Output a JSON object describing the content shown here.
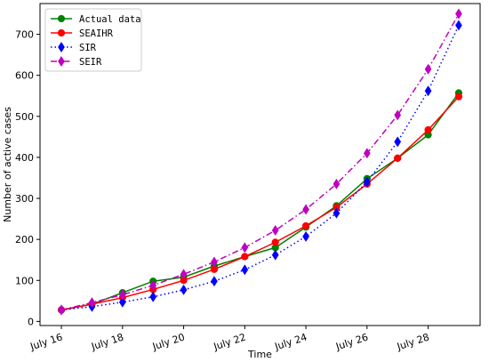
{
  "chart_data": {
    "type": "line",
    "xlabel": "Time",
    "ylabel": "Number of active cases",
    "xlim": [
      15.3,
      29.7
    ],
    "ylim": [
      -10,
      775
    ],
    "x_ticks": [
      16,
      18,
      20,
      22,
      24,
      26,
      28
    ],
    "x_tick_labels": [
      "July 16",
      "July 18",
      "July 20",
      "July 22",
      "July 24",
      "July 26",
      "July 28"
    ],
    "y_ticks": [
      0,
      100,
      200,
      300,
      400,
      500,
      600,
      700
    ],
    "y_tick_labels": [
      "0",
      "100",
      "200",
      "300",
      "400",
      "500",
      "600",
      "700"
    ],
    "x": [
      16,
      17,
      18,
      19,
      20,
      21,
      22,
      23,
      24,
      25,
      26,
      27,
      28,
      29
    ],
    "legend_position": "upper-left",
    "grid": false,
    "series": [
      {
        "name": "Actual data",
        "color": "#008000",
        "linestyle": "solid",
        "marker": "circle",
        "values": [
          28,
          42,
          70,
          98,
          108,
          135,
          158,
          180,
          230,
          282,
          348,
          398,
          455,
          557
        ]
      },
      {
        "name": "SEAIHR",
        "color": "#ff0000",
        "linestyle": "solid",
        "marker": "circle",
        "values": [
          28,
          42,
          58,
          78,
          100,
          127,
          158,
          193,
          233,
          278,
          335,
          398,
          467,
          548
        ]
      },
      {
        "name": "SIR",
        "color": "#0000ff",
        "linestyle": "dotted",
        "marker": "diamond",
        "values": [
          28,
          36,
          47,
          60,
          77,
          98,
          126,
          162,
          207,
          264,
          340,
          438,
          562,
          722
        ]
      },
      {
        "name": "SEIR",
        "color": "#bf00bf",
        "linestyle": "dashdot",
        "marker": "diamond",
        "values": [
          28,
          46,
          65,
          88,
          115,
          145,
          180,
          222,
          273,
          335,
          410,
          503,
          615,
          750
        ]
      }
    ]
  }
}
